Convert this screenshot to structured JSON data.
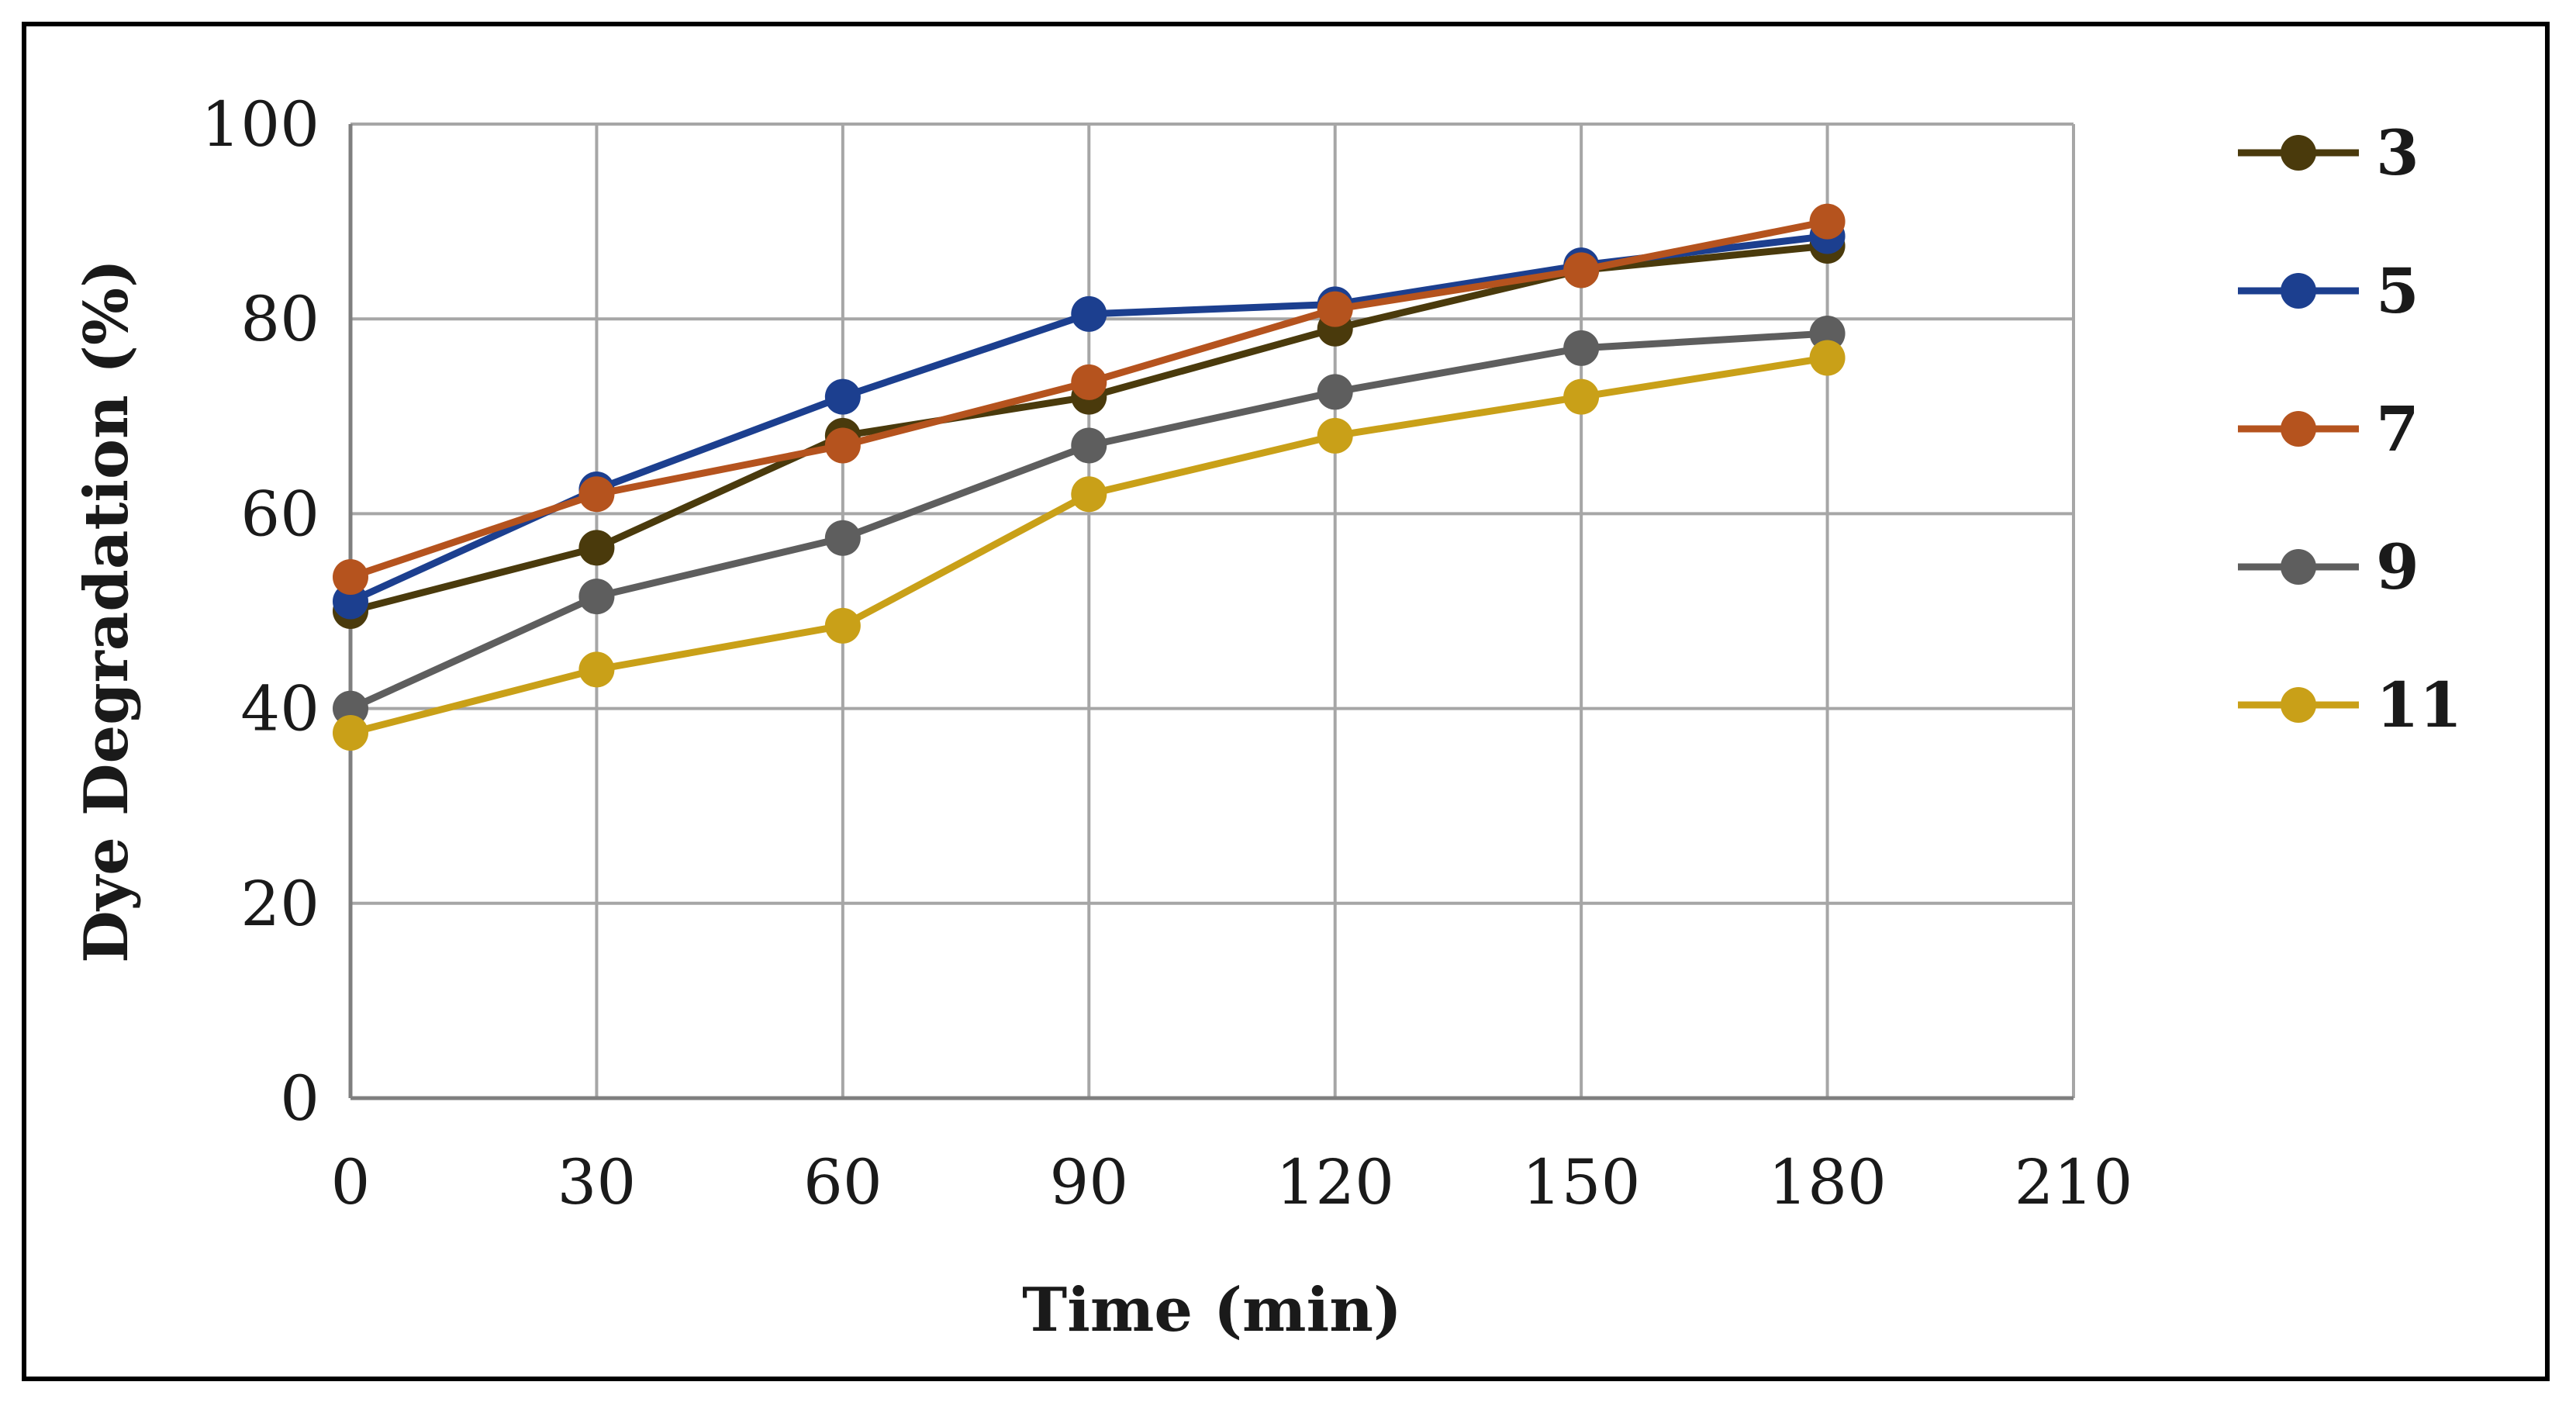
{
  "chart_data": {
    "type": "line",
    "title": "",
    "xlabel": "Time (min)",
    "ylabel": "Dye Degradation (%)",
    "x": [
      0,
      30,
      60,
      90,
      120,
      150,
      180
    ],
    "xlim": [
      0,
      210
    ],
    "ylim": [
      0,
      100
    ],
    "xticks": [
      0,
      30,
      60,
      90,
      120,
      150,
      180,
      210
    ],
    "yticks": [
      0,
      20,
      40,
      60,
      80,
      100
    ],
    "xtick_labels": [
      "0",
      "30",
      "60",
      "90",
      "120",
      "150",
      "180",
      "210"
    ],
    "ytick_labels": [
      "0",
      "20",
      "40",
      "60",
      "80",
      "100"
    ],
    "grid": true,
    "legend_position": "right",
    "series": [
      {
        "name": "3",
        "color": "#4a3a0c",
        "values": [
          50,
          56.5,
          68,
          72,
          79,
          85,
          87.5
        ]
      },
      {
        "name": "5",
        "color": "#1c3f8f",
        "values": [
          51,
          62.5,
          72,
          80.5,
          81.5,
          85.5,
          88.5
        ]
      },
      {
        "name": "7",
        "color": "#b5531e",
        "values": [
          53.5,
          62,
          67,
          73.5,
          81,
          85,
          90
        ]
      },
      {
        "name": "9",
        "color": "#5e5e5e",
        "values": [
          40,
          51.5,
          57.5,
          67,
          72.5,
          77,
          78.5
        ]
      },
      {
        "name": "11",
        "color": "#c9a018",
        "values": [
          37.5,
          44,
          48.5,
          62,
          68,
          72,
          76
        ]
      }
    ]
  }
}
